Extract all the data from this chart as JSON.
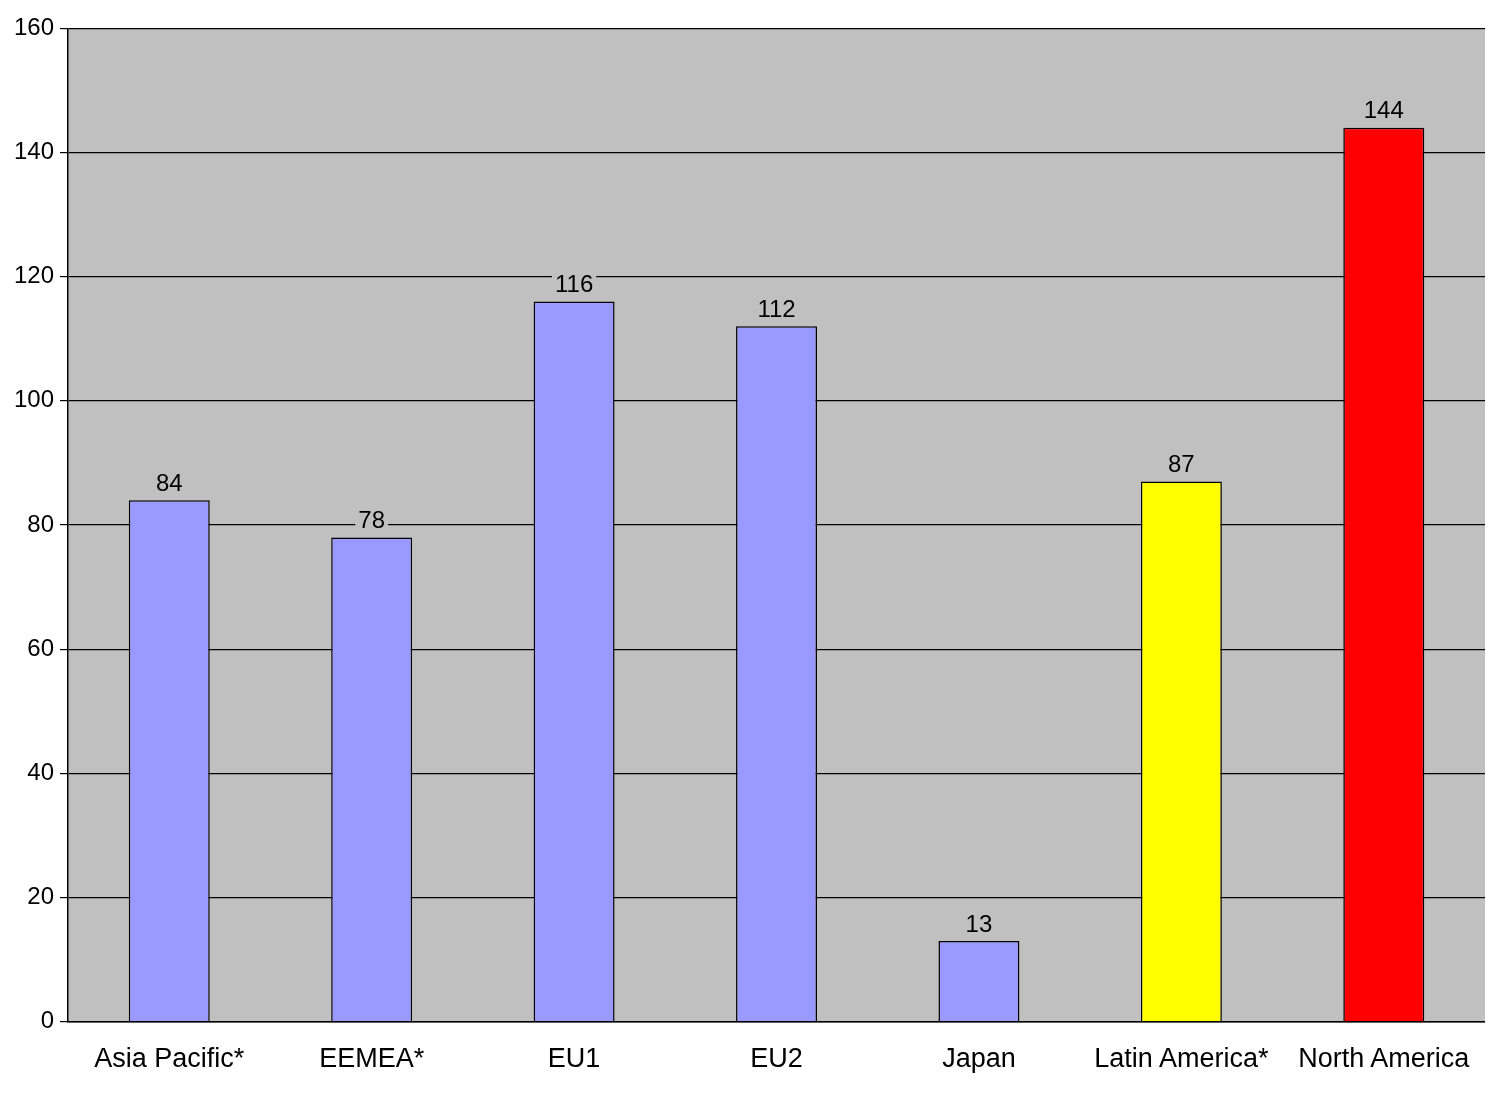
{
  "chart_data": {
    "type": "bar",
    "categories": [
      "Asia Pacific*",
      "EEMEA*",
      "EU1",
      "EU2",
      "Japan",
      "Latin America*",
      "North America"
    ],
    "values": [
      84,
      78,
      116,
      112,
      13,
      87,
      144
    ],
    "colors": [
      "#9999ff",
      "#9999ff",
      "#9999ff",
      "#9999ff",
      "#9999ff",
      "#ffff00",
      "#ff0000"
    ],
    "ylim": [
      0,
      160
    ],
    "yticks": [
      0,
      20,
      40,
      60,
      80,
      100,
      120,
      140,
      160
    ],
    "grid": "y",
    "data_labels": true,
    "legend": false
  }
}
